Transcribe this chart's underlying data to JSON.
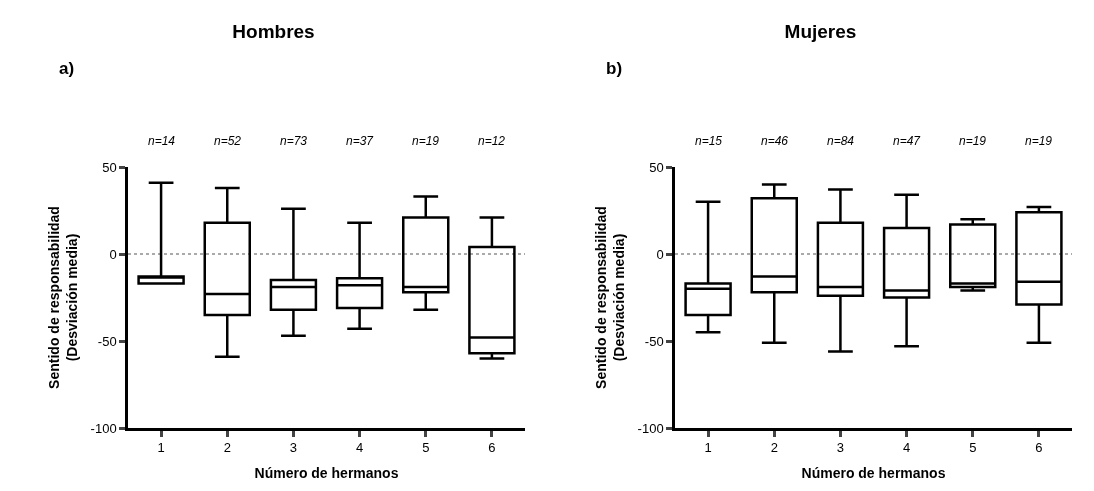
{
  "chart_data": [
    {
      "type": "box",
      "title": "Hombres",
      "xlabel": "Número de hermanos",
      "ylabel": "Sentido de responsabilidad\n(Desviación media)",
      "categories": [
        "1",
        "2",
        "3",
        "4",
        "5",
        "6"
      ],
      "color": "#000000",
      "boxes": [
        {
          "low": -17,
          "q1": -17,
          "median": -13,
          "q3": -13,
          "high": 41
        },
        {
          "low": -59,
          "q1": -35,
          "median": -23,
          "q3": 18,
          "high": 38
        },
        {
          "low": -47,
          "q1": -32,
          "median": -19,
          "q3": -15,
          "high": 26
        },
        {
          "low": -43,
          "q1": -31,
          "median": -18,
          "q3": -14,
          "high": 18
        },
        {
          "low": -32,
          "q1": -22,
          "median": -19,
          "q3": 21,
          "high": 33
        },
        {
          "low": -60,
          "q1": -57,
          "median": -48,
          "q3": 4,
          "high": 21
        }
      ],
      "ylim": [
        -100,
        50
      ],
      "yticks": [
        -100,
        -50,
        0,
        50
      ],
      "grid": false,
      "legend": false,
      "ref_lines": [
        {
          "axis": "y",
          "value": 0,
          "line_style": "dotted",
          "color": "#555555"
        }
      ],
      "annotations": [
        "a)",
        "n=14",
        "n=52",
        "n=73",
        "n=37",
        "n=19",
        "n=12"
      ]
    },
    {
      "type": "box",
      "title": "Mujeres",
      "xlabel": "Número de hermanos",
      "ylabel": "Sentido de responsabilidad\n(Desviación media)",
      "categories": [
        "1",
        "2",
        "3",
        "4",
        "5",
        "6"
      ],
      "color": "#000000",
      "boxes": [
        {
          "low": -45,
          "q1": -35,
          "median": -20,
          "q3": -17,
          "high": 30
        },
        {
          "low": -51,
          "q1": -22,
          "median": -13,
          "q3": 32,
          "high": 40
        },
        {
          "low": -56,
          "q1": -24,
          "median": -19,
          "q3": 18,
          "high": 37
        },
        {
          "low": -53,
          "q1": -25,
          "median": -21,
          "q3": 15,
          "high": 34
        },
        {
          "low": -21,
          "q1": -19,
          "median": -17,
          "q3": 17,
          "high": 20
        },
        {
          "low": -51,
          "q1": -29,
          "median": -16,
          "q3": 24,
          "high": 27
        }
      ],
      "ylim": [
        -100,
        50
      ],
      "yticks": [
        -100,
        -50,
        0,
        50
      ],
      "grid": false,
      "legend": false,
      "ref_lines": [
        {
          "axis": "y",
          "value": 0,
          "line_style": "dotted",
          "color": "#555555"
        }
      ],
      "annotations": [
        "b)",
        "n=15",
        "n=46",
        "n=84",
        "n=47",
        "n=19",
        "n=19"
      ]
    }
  ]
}
